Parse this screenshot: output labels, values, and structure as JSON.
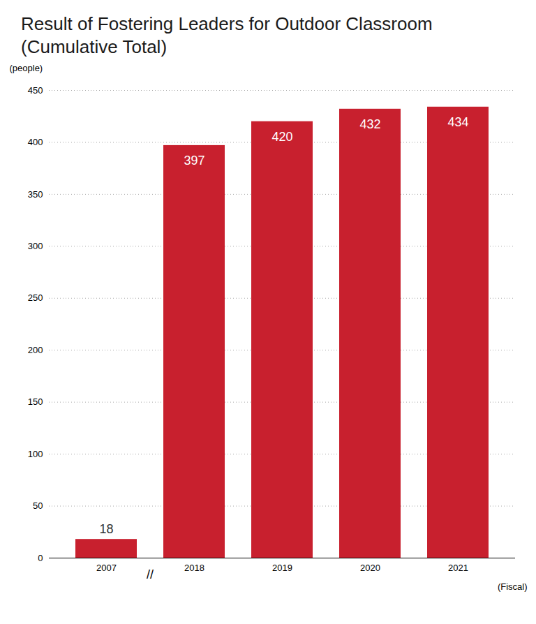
{
  "chart_data": {
    "type": "bar",
    "title": "Result of Fostering Leaders for Outdoor Classroom (Cumulative Total)",
    "y_label": "(people)",
    "x_label": "(Fiscal)",
    "annotation": "//",
    "categories": [
      "2007",
      "2018",
      "2019",
      "2020",
      "2021"
    ],
    "values": [
      18,
      397,
      420,
      432,
      434
    ],
    "color": "#c8202e",
    "ylim": [
      0,
      450
    ],
    "yticks": [
      0,
      50,
      100,
      150,
      200,
      250,
      300,
      350,
      400,
      450
    ],
    "grid": true,
    "data_labels": true
  }
}
